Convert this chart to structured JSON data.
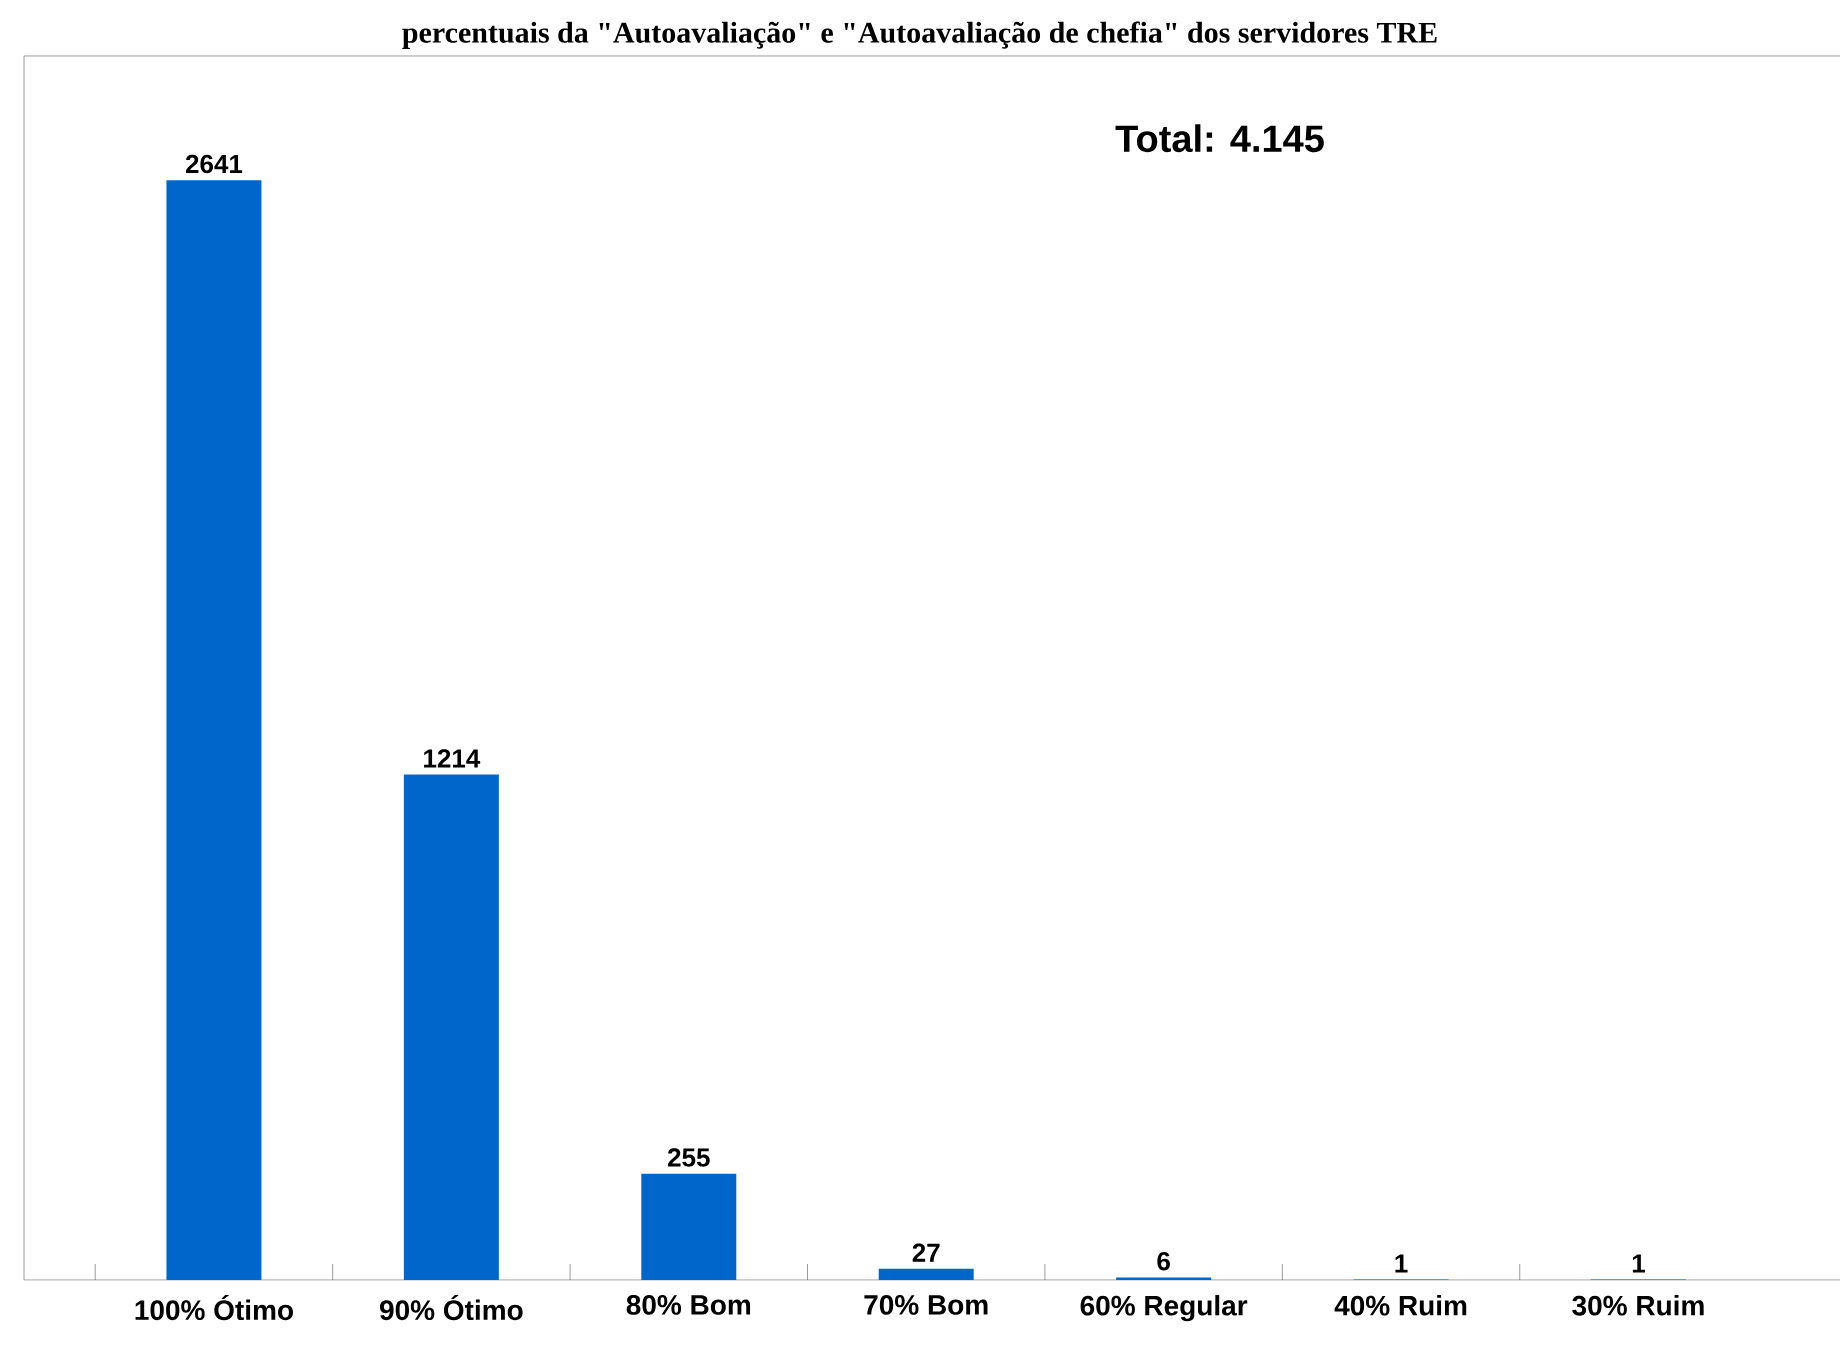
{
  "chart_data": {
    "type": "bar",
    "title": "percentuais da \"Autoavaliação\" e \"Autoavaliação de chefia\" dos servidores TRE",
    "categories": [
      "100% Ótimo",
      "90% Ótimo",
      "80% Bom",
      "70% Bom",
      "60% Regular",
      "40% Ruim",
      "30% Ruim"
    ],
    "values": [
      2641,
      1214,
      255,
      27,
      6,
      1,
      1
    ],
    "color": "#0066cc",
    "data_labels": true,
    "annotations": [
      "Total: 4.145"
    ]
  }
}
